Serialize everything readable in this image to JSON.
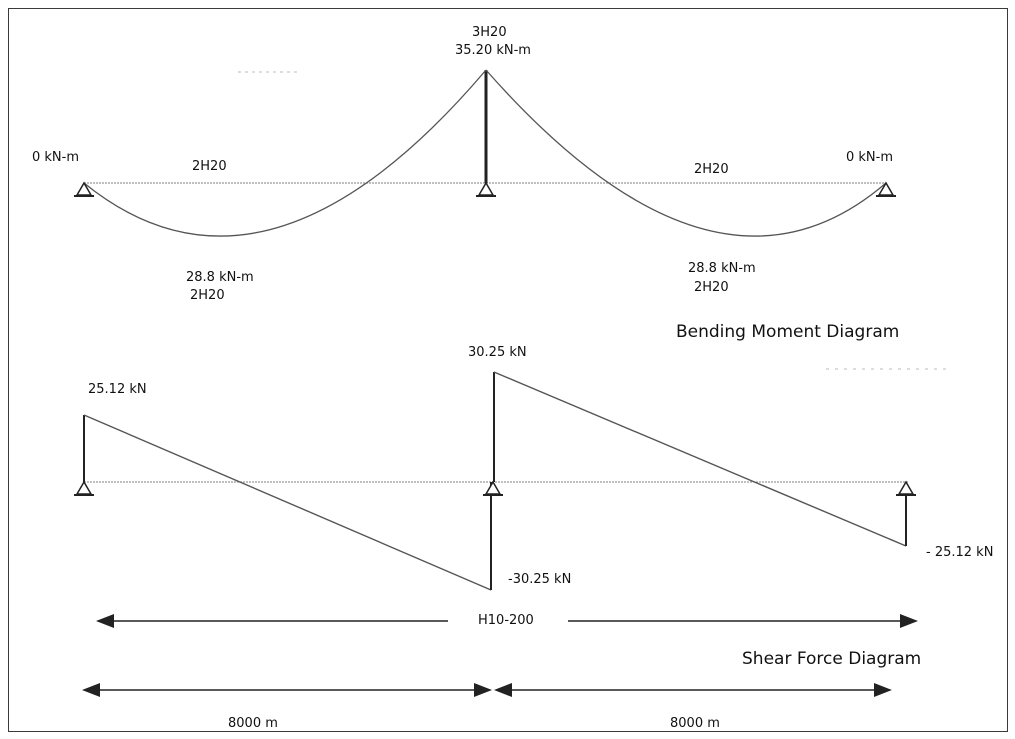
{
  "bending_moment": {
    "title": "Bending Moment Diagram",
    "left_support_moment": "0 kN-m",
    "right_support_moment": "0 kN-m",
    "middle_support_moment": "35.20 kN-m",
    "middle_support_bars": "3H20",
    "left_span_top_bars": "2H20",
    "right_span_top_bars": "2H20",
    "left_span_moment": "28.8 kN-m",
    "left_span_bottom_bars": "2H20",
    "right_span_moment": "28.8 kN-m",
    "right_span_bottom_bars": "2H20"
  },
  "shear_force": {
    "title": "Shear Force Diagram",
    "left_support_shear": "25.12 kN",
    "middle_support_shear_right": "30.25 kN",
    "middle_support_shear_left": "-30.25 kN",
    "right_support_shear": "- 25.12 kN"
  },
  "dimensions": {
    "stirrups": "H10-200",
    "left_span_length": "8000 m",
    "right_span_length": "8000 m"
  },
  "colors": {
    "line": "#222222",
    "curve": "#555555",
    "baseline": "#9a9a9a"
  }
}
